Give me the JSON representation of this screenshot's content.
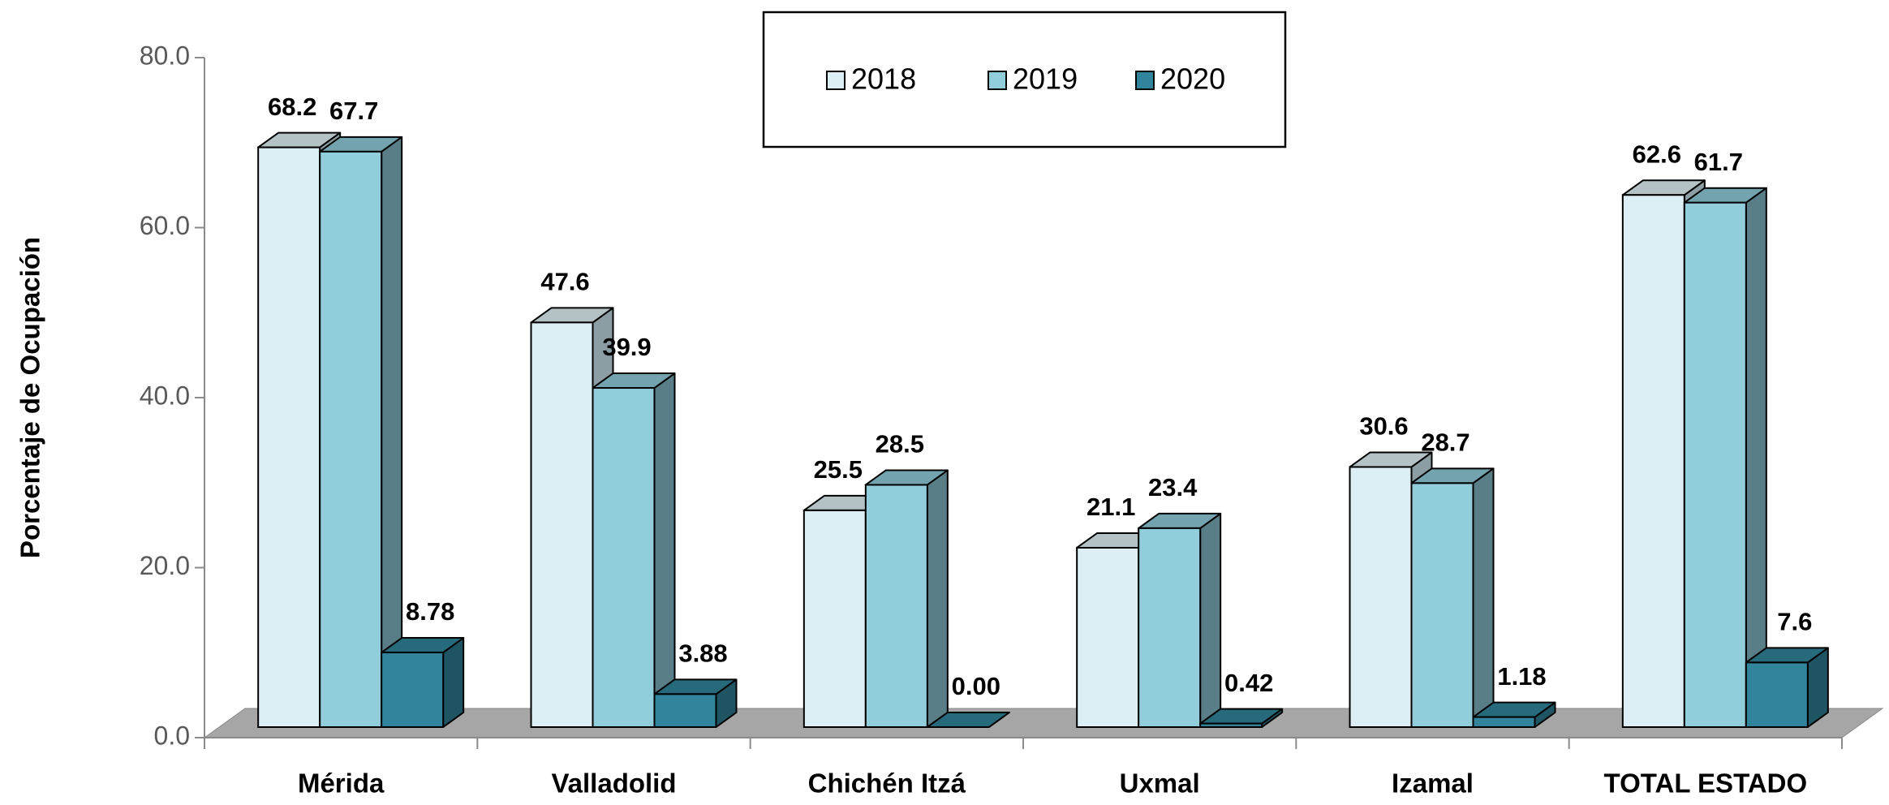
{
  "chart_data": {
    "type": "bar3d",
    "y_label": "Porcentaje de Ocupación",
    "categories": [
      "Mérida",
      "Valladolid",
      "Chichén Itzá",
      "Uxmal",
      "Izamal",
      "TOTAL ESTADO"
    ],
    "series": [
      {
        "name": "2018",
        "color": "#ddeef5",
        "side_color": "#8c9ea4",
        "top_color": "#b4c2c6",
        "values": [
          68.2,
          47.6,
          25.5,
          21.1,
          30.6,
          62.6
        ]
      },
      {
        "name": "2019",
        "color": "#92cddc",
        "side_color": "#5a7e88",
        "top_color": "#74a3b0",
        "values": [
          67.7,
          39.9,
          28.5,
          23.4,
          28.7,
          61.7
        ]
      },
      {
        "name": "2020",
        "color": "#31849b",
        "side_color": "#1f5562",
        "top_color": "#266a7c",
        "values": [
          8.78,
          3.88,
          0,
          0.42,
          1.18,
          7.6
        ],
        "value_labels": [
          "8.78",
          "3.88",
          "0.00",
          "0.42",
          "1.18",
          "7.6"
        ]
      }
    ],
    "ylim": [
      0,
      80
    ],
    "yticks": [
      {
        "value": 0,
        "label": "0.0"
      },
      {
        "value": 20,
        "label": "20.0"
      },
      {
        "value": 40,
        "label": "40.0"
      },
      {
        "value": 60,
        "label": "60.0"
      },
      {
        "value": 80,
        "label": "80.0"
      }
    ],
    "floor_color": "#a6a6a6",
    "legend": "top"
  }
}
